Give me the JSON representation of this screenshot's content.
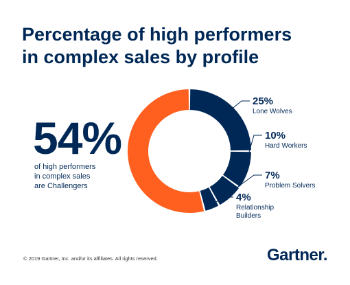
{
  "title_lines": [
    "Percentage of high performers",
    "in complex sales by profile"
  ],
  "highlight": {
    "value": "54%",
    "caption_lines": [
      "of high performers",
      "in complex sales",
      "are Challengers"
    ]
  },
  "chart_data": {
    "type": "pie",
    "style": "donut",
    "title": "Percentage of high performers in complex sales by profile",
    "unit": "%",
    "slices": [
      {
        "label": "Lone Wolves",
        "value": 25,
        "display": "25%",
        "color": "#002856"
      },
      {
        "label": "Hard Workers",
        "value": 10,
        "display": "10%",
        "color": "#002856"
      },
      {
        "label": "Problem Solvers",
        "value": 7,
        "display": "7%",
        "color": "#002856"
      },
      {
        "label": "Relationship Builders",
        "value": 4,
        "display": "4%",
        "color": "#002856"
      },
      {
        "label": "Challengers",
        "value": 54,
        "display": "54%",
        "color": "#FF5F1F"
      }
    ]
  },
  "footer": "© 2019 Gartner, Inc. and/or its affiliates. All rights reserved.",
  "logo": "Gartner"
}
